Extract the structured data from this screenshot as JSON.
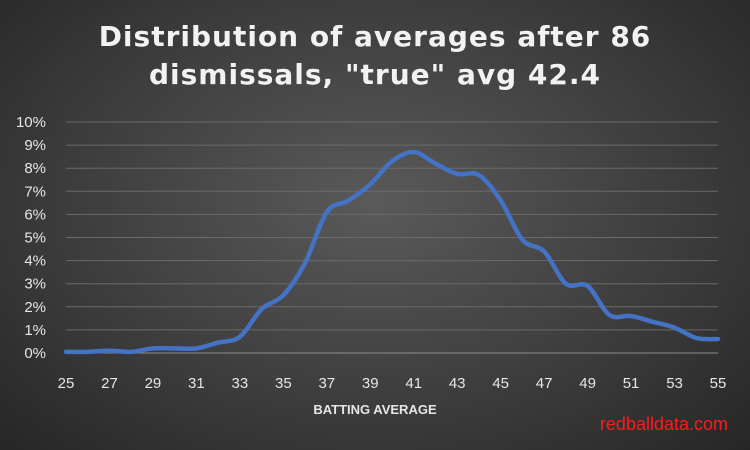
{
  "chart_data": {
    "type": "line",
    "title_lines": [
      "Distribution of averages after 86",
      "dismissals, \"true\" avg 42.4"
    ],
    "xlabel": "BATTING AVERAGE",
    "ylabel": "",
    "xlim": [
      25,
      55
    ],
    "ylim": [
      0,
      10
    ],
    "x_ticks": [
      "25",
      "27",
      "29",
      "31",
      "33",
      "35",
      "37",
      "39",
      "41",
      "43",
      "45",
      "47",
      "49",
      "51",
      "53",
      "55"
    ],
    "y_ticks": [
      "0%",
      "1%",
      "2%",
      "3%",
      "4%",
      "5%",
      "6%",
      "7%",
      "8%",
      "9%",
      "10%"
    ],
    "grid": true,
    "legend": "none",
    "line_color": "#4472c4",
    "series": [
      {
        "name": "Distribution",
        "x": [
          25,
          26,
          27,
          28,
          29,
          30,
          31,
          32,
          33,
          34,
          35,
          36,
          37,
          38,
          39,
          40,
          41,
          42,
          43,
          44,
          45,
          46,
          47,
          48,
          49,
          50,
          51,
          52,
          53,
          54,
          55
        ],
        "values": [
          0.05,
          0.05,
          0.1,
          0.05,
          0.2,
          0.2,
          0.2,
          0.45,
          0.7,
          1.9,
          2.5,
          3.9,
          6.1,
          6.6,
          7.3,
          8.3,
          8.7,
          8.2,
          7.75,
          7.7,
          6.6,
          4.9,
          4.4,
          3.0,
          2.9,
          1.65,
          1.6,
          1.35,
          1.1,
          0.65,
          0.6
        ]
      }
    ]
  },
  "watermark": "redballdata.com"
}
